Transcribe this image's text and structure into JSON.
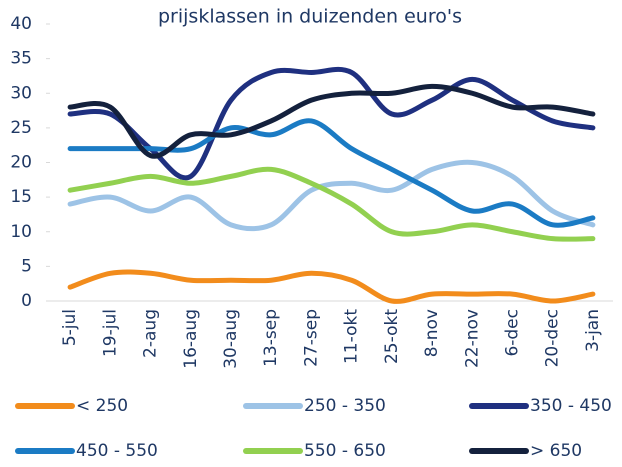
{
  "chart_data": {
    "type": "line",
    "title": "prijsklassen in duizenden euro's",
    "categories": [
      "5-jul",
      "19-jul",
      "2-aug",
      "16-aug",
      "30-aug",
      "13-sep",
      "27-sep",
      "11-okt",
      "25-okt",
      "8-nov",
      "22-nov",
      "6-dec",
      "20-dec",
      "3-jan"
    ],
    "series": [
      {
        "name": "< 250",
        "color": "#f28c1c",
        "values": [
          2,
          4,
          4,
          3,
          3,
          3,
          4,
          3,
          0,
          1,
          1,
          1,
          0,
          1
        ]
      },
      {
        "name": "250 - 350",
        "color": "#9dc3e6",
        "values": [
          14,
          15,
          13,
          15,
          11,
          11,
          16,
          17,
          16,
          19,
          20,
          18,
          13,
          11
        ]
      },
      {
        "name": "350 - 450",
        "color": "#1f3080",
        "values": [
          27,
          27,
          22,
          18,
          29,
          33,
          33,
          33,
          27,
          29,
          32,
          29,
          26,
          25
        ]
      },
      {
        "name": "450 - 550",
        "color": "#1b7bc4",
        "values": [
          22,
          22,
          22,
          22,
          25,
          24,
          26,
          22,
          19,
          16,
          13,
          14,
          11,
          12
        ]
      },
      {
        "name": "550 - 650",
        "color": "#92d050",
        "values": [
          16,
          17,
          18,
          17,
          18,
          19,
          17,
          14,
          10,
          10,
          11,
          10,
          9,
          9
        ]
      },
      {
        "name": "> 650",
        "color": "#14213d",
        "values": [
          28,
          28,
          21,
          24,
          24,
          26,
          29,
          30,
          30,
          31,
          30,
          28,
          28,
          27
        ]
      }
    ],
    "ylim": [
      0,
      40
    ],
    "yticks": [
      0,
      5,
      10,
      15,
      20,
      25,
      30,
      35,
      40
    ],
    "grid": false,
    "legend": "bottom"
  }
}
